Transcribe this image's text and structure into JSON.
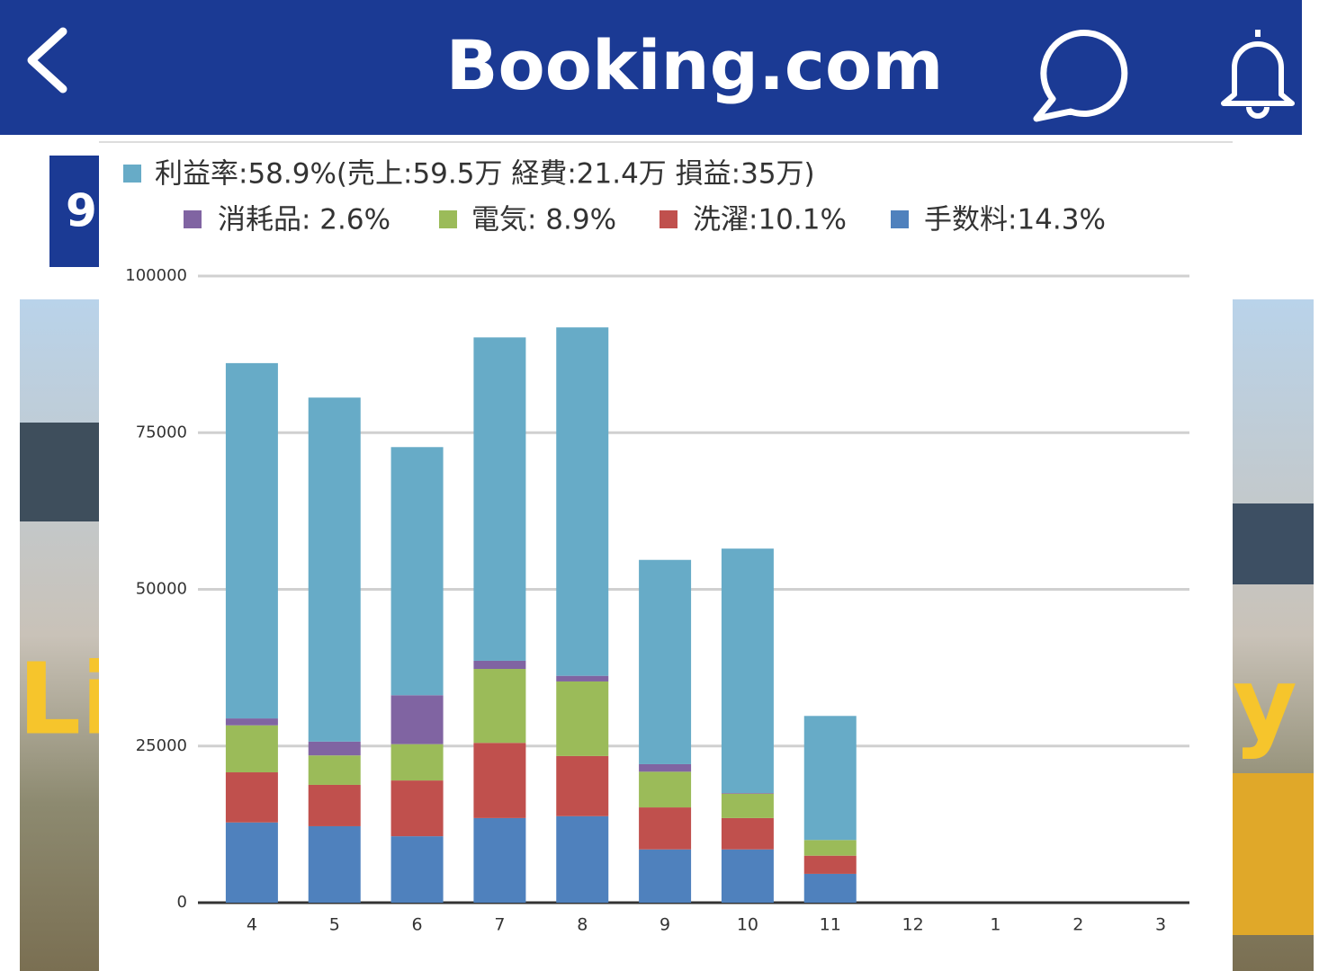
{
  "header": {
    "title": "Booking.com"
  },
  "background": {
    "badge": "9",
    "overlay_left": "Li",
    "overlay_right": "y"
  },
  "chart_data": {
    "type": "stacked_bar",
    "categories": [
      "4",
      "5",
      "6",
      "7",
      "8",
      "9",
      "10",
      "11",
      "12",
      "1",
      "2",
      "3"
    ],
    "series": [
      {
        "name": "利益率:58.9%(売上:59.5万 経費:21.4万 損益:35万)",
        "color": "#67abc7",
        "values": [
          56700,
          54900,
          39600,
          51600,
          55600,
          32600,
          39000,
          19800,
          null,
          null,
          null,
          null
        ]
      },
      {
        "name": "消耗品: 2.6%",
        "color": "#8064a2",
        "values": [
          1100,
          2200,
          7800,
          1300,
          900,
          1200,
          100,
          0,
          null,
          null,
          null,
          null
        ]
      },
      {
        "name": "電気: 8.9%",
        "color": "#9bbb59",
        "values": [
          7500,
          4700,
          5800,
          11800,
          11900,
          5700,
          3900,
          2500,
          null,
          null,
          null,
          null
        ]
      },
      {
        "name": "洗濯:10.1%",
        "color": "#c0504d",
        "values": [
          8000,
          6600,
          8900,
          12000,
          9600,
          6700,
          5000,
          2900,
          null,
          null,
          null,
          null
        ]
      },
      {
        "name": "手数料:14.3%",
        "color": "#4f81bd",
        "values": [
          12800,
          12200,
          10600,
          13500,
          13800,
          8500,
          8500,
          4600,
          null,
          null,
          null,
          null
        ]
      }
    ],
    "ylim": [
      0,
      100000
    ],
    "yticks": [
      0,
      25000,
      50000,
      75000,
      100000
    ],
    "grid": true
  }
}
